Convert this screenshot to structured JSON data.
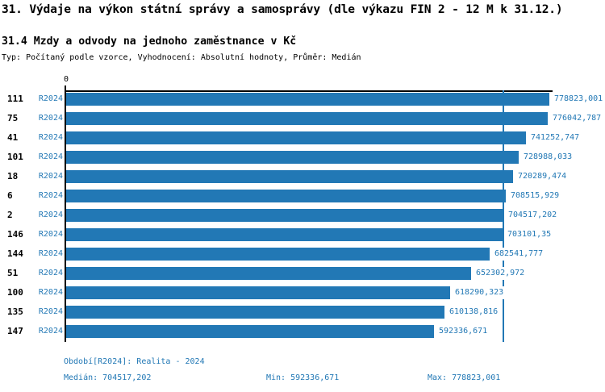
{
  "page": {
    "background": "#ffffff",
    "text_color": "#000000",
    "accent_color": "#2278b5"
  },
  "header": {
    "title": "31. Výdaje na výkon státní správy a samosprávy (dle výkazu FIN 2 - 12 M k 31.12.)",
    "subtitle": "31.4 Mzdy a odvody na jednoho zaměstnance v Kč",
    "meta": "Typ: Počítaný podle vzorce, Vyhodnocení: Absolutní hodnoty, Průměr: Medián"
  },
  "chart_data": {
    "type": "bar",
    "orientation": "horizontal",
    "bar_color": "#2278b5",
    "axis_color": "#000000",
    "label_color": "#2278b5",
    "x_axis": {
      "position": "top",
      "tick_labels": [
        "0"
      ],
      "range": [
        0,
        778823.001
      ],
      "grid": false
    },
    "series_label": "R2024",
    "categories": [
      "111",
      "75",
      "41",
      "101",
      "18",
      "6",
      "2",
      "146",
      "144",
      "51",
      "100",
      "135",
      "147"
    ],
    "values": [
      778823.001,
      776042.787,
      741252.747,
      728988.033,
      720289.474,
      708515.929,
      704517.202,
      703101.35,
      682541.777,
      652302.972,
      618290.323,
      610138.816,
      592336.671
    ],
    "value_labels": [
      "778823,001",
      "776042,787",
      "741252,747",
      "728988,033",
      "720289,474",
      "708515,929",
      "704517,202",
      "703101,35",
      "682541,777",
      "652302,972",
      "618290,323",
      "610138,816",
      "592336,671"
    ],
    "median": {
      "value": 704517.202,
      "line_color": "#2278b5"
    }
  },
  "footer": {
    "period": "Období[R2024]: Realita - 2024",
    "median": "Medián: 704517,202",
    "min": "Min: 592336,671",
    "max": "Max: 778823,001"
  }
}
